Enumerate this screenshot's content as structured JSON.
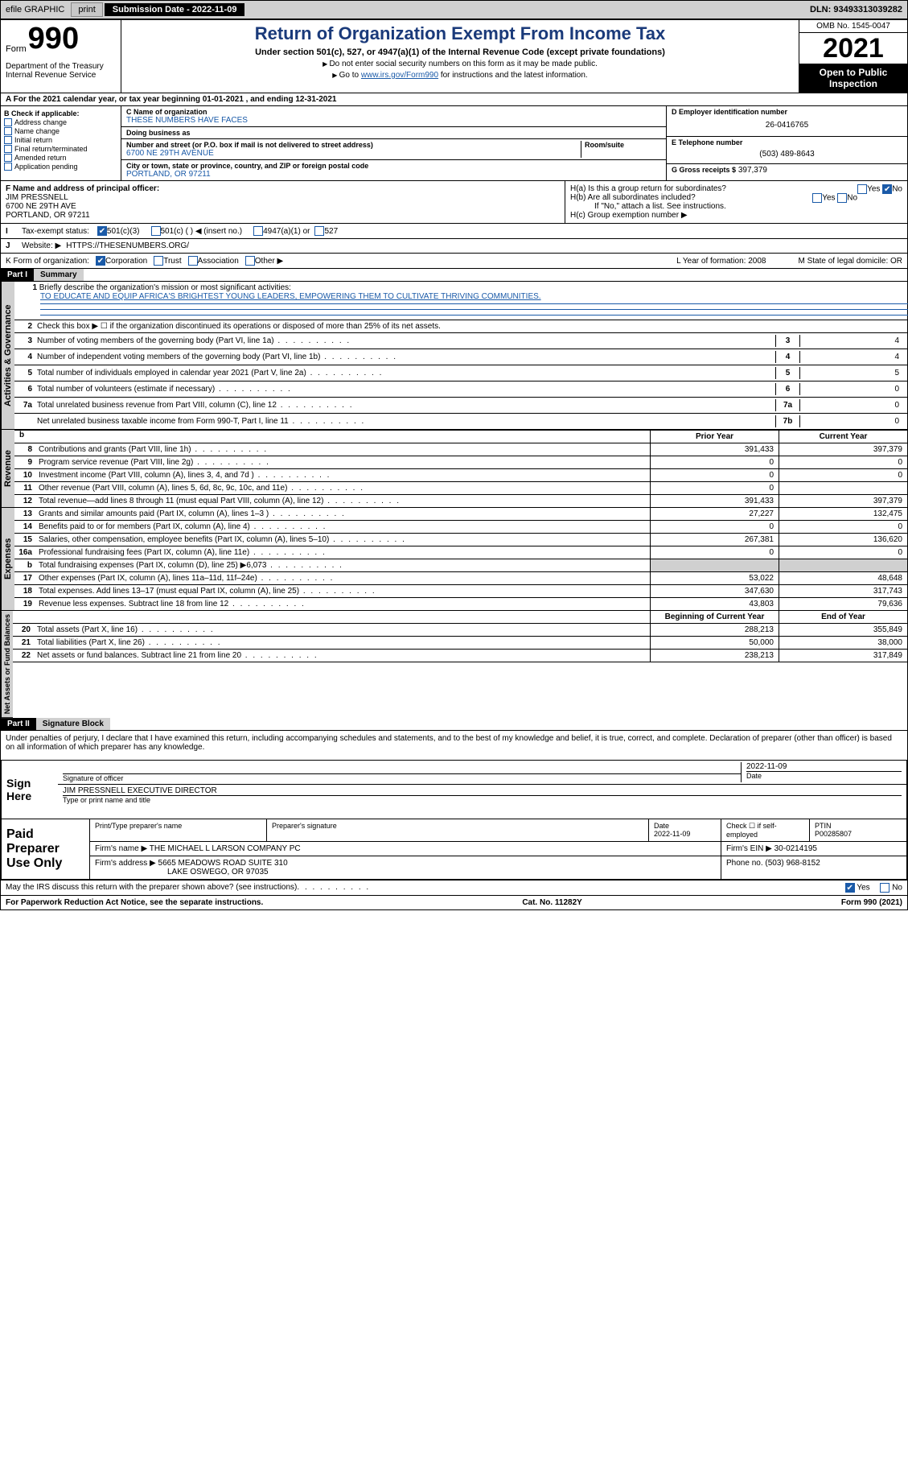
{
  "topbar": {
    "efile": "efile GRAPHIC",
    "print": "print",
    "submission": "Submission Date - 2022-11-09",
    "dln": "DLN: 93493313039282"
  },
  "header": {
    "form_word": "Form",
    "form_num": "990",
    "title": "Return of Organization Exempt From Income Tax",
    "sub": "Under section 501(c), 527, or 4947(a)(1) of the Internal Revenue Code (except private foundations)",
    "note1": "Do not enter social security numbers on this form as it may be made public.",
    "note2_pre": "Go to ",
    "note2_link": "www.irs.gov/Form990",
    "note2_post": " for instructions and the latest information.",
    "dept": "Department of the Treasury\nInternal Revenue Service",
    "omb": "OMB No. 1545-0047",
    "year": "2021",
    "inspection": "Open to Public Inspection"
  },
  "period": "For the 2021 calendar year, or tax year beginning 01-01-2021   , and ending 12-31-2021",
  "sectionB": {
    "hdr": "B Check if applicable:",
    "items": [
      "Address change",
      "Name change",
      "Initial return",
      "Final return/terminated",
      "Amended return",
      "Application pending"
    ]
  },
  "sectionC": {
    "name_lbl": "C Name of organization",
    "name": "THESE NUMBERS HAVE FACES",
    "dba_lbl": "Doing business as",
    "addr_lbl": "Number and street (or P.O. box if mail is not delivered to street address)",
    "room_lbl": "Room/suite",
    "addr": "6700 NE 29TH AVENUE",
    "city_lbl": "City or town, state or province, country, and ZIP or foreign postal code",
    "city": "PORTLAND, OR  97211"
  },
  "sectionD": {
    "lbl": "D Employer identification number",
    "val": "26-0416765"
  },
  "sectionE": {
    "lbl": "E Telephone number",
    "val": "(503) 489-8643"
  },
  "sectionG": {
    "lbl": "G Gross receipts $",
    "val": "397,379"
  },
  "sectionF": {
    "lbl": "F Name and address of principal officer:",
    "name": "JIM PRESSNELL",
    "addr1": "6700 NE 29TH AVE",
    "addr2": "PORTLAND, OR  97211"
  },
  "sectionH": {
    "a": "H(a)  Is this a group return for subordinates?",
    "b": "H(b)  Are all subordinates included?",
    "b_note": "If \"No,\" attach a list. See instructions.",
    "c": "H(c)  Group exemption number ▶",
    "yes": "Yes",
    "no": "No"
  },
  "rowI": {
    "lbl": "Tax-exempt status:",
    "o1": "501(c)(3)",
    "o2": "501(c) (  ) ◀ (insert no.)",
    "o3": "4947(a)(1) or",
    "o4": "527"
  },
  "rowJ": {
    "lbl": "Website: ▶",
    "val": "HTTPS://THESENUMBERS.ORG/"
  },
  "rowK": {
    "lbl": "K Form of organization:",
    "o1": "Corporation",
    "o2": "Trust",
    "o3": "Association",
    "o4": "Other ▶",
    "L": "L Year of formation: 2008",
    "M": "M State of legal domicile: OR"
  },
  "partI": {
    "hdr": "Part I",
    "title": "Summary",
    "tabs": {
      "gov": "Activities & Governance",
      "rev": "Revenue",
      "exp": "Expenses",
      "net": "Net Assets or Fund Balances"
    },
    "l1": "Briefly describe the organization's mission or most significant activities:",
    "mission": "TO EDUCATE AND EQUIP AFRICA'S BRIGHTEST YOUNG LEADERS, EMPOWERING THEM TO CULTIVATE THRIVING COMMUNITIES.",
    "l2": "Check this box ▶ ☐  if the organization discontinued its operations or disposed of more than 25% of its net assets.",
    "lines_gov": [
      {
        "n": "3",
        "t": "Number of voting members of the governing body (Part VI, line 1a)",
        "b": "3",
        "v": "4"
      },
      {
        "n": "4",
        "t": "Number of independent voting members of the governing body (Part VI, line 1b)",
        "b": "4",
        "v": "4"
      },
      {
        "n": "5",
        "t": "Total number of individuals employed in calendar year 2021 (Part V, line 2a)",
        "b": "5",
        "v": "5"
      },
      {
        "n": "6",
        "t": "Total number of volunteers (estimate if necessary)",
        "b": "6",
        "v": "0"
      },
      {
        "n": "7a",
        "t": "Total unrelated business revenue from Part VIII, column (C), line 12",
        "b": "7a",
        "v": "0"
      },
      {
        "n": "",
        "t": "Net unrelated business taxable income from Form 990-T, Part I, line 11",
        "b": "7b",
        "v": "0"
      }
    ],
    "col_prior": "Prior Year",
    "col_curr": "Current Year",
    "col_beg": "Beginning of Current Year",
    "col_end": "End of Year",
    "lines_rev": [
      {
        "n": "8",
        "t": "Contributions and grants (Part VIII, line 1h)",
        "p": "391,433",
        "c": "397,379"
      },
      {
        "n": "9",
        "t": "Program service revenue (Part VIII, line 2g)",
        "p": "0",
        "c": "0"
      },
      {
        "n": "10",
        "t": "Investment income (Part VIII, column (A), lines 3, 4, and 7d )",
        "p": "0",
        "c": "0"
      },
      {
        "n": "11",
        "t": "Other revenue (Part VIII, column (A), lines 5, 6d, 8c, 9c, 10c, and 11e)",
        "p": "0",
        "c": ""
      },
      {
        "n": "12",
        "t": "Total revenue—add lines 8 through 11 (must equal Part VIII, column (A), line 12)",
        "p": "391,433",
        "c": "397,379"
      }
    ],
    "lines_exp": [
      {
        "n": "13",
        "t": "Grants and similar amounts paid (Part IX, column (A), lines 1–3 )",
        "p": "27,227",
        "c": "132,475"
      },
      {
        "n": "14",
        "t": "Benefits paid to or for members (Part IX, column (A), line 4)",
        "p": "0",
        "c": "0"
      },
      {
        "n": "15",
        "t": "Salaries, other compensation, employee benefits (Part IX, column (A), lines 5–10)",
        "p": "267,381",
        "c": "136,620"
      },
      {
        "n": "16a",
        "t": "Professional fundraising fees (Part IX, column (A), line 11e)",
        "p": "0",
        "c": "0"
      },
      {
        "n": "b",
        "t": "Total fundraising expenses (Part IX, column (D), line 25) ▶6,073",
        "p": "",
        "c": "",
        "shaded": true
      },
      {
        "n": "17",
        "t": "Other expenses (Part IX, column (A), lines 11a–11d, 11f–24e)",
        "p": "53,022",
        "c": "48,648"
      },
      {
        "n": "18",
        "t": "Total expenses. Add lines 13–17 (must equal Part IX, column (A), line 25)",
        "p": "347,630",
        "c": "317,743"
      },
      {
        "n": "19",
        "t": "Revenue less expenses. Subtract line 18 from line 12",
        "p": "43,803",
        "c": "79,636"
      }
    ],
    "lines_net": [
      {
        "n": "20",
        "t": "Total assets (Part X, line 16)",
        "p": "288,213",
        "c": "355,849"
      },
      {
        "n": "21",
        "t": "Total liabilities (Part X, line 26)",
        "p": "50,000",
        "c": "38,000"
      },
      {
        "n": "22",
        "t": "Net assets or fund balances. Subtract line 21 from line 20",
        "p": "238,213",
        "c": "317,849"
      }
    ]
  },
  "partII": {
    "hdr": "Part II",
    "title": "Signature Block",
    "decl": "Under penalties of perjury, I declare that I have examined this return, including accompanying schedules and statements, and to the best of my knowledge and belief, it is true, correct, and complete. Declaration of preparer (other than officer) is based on all information of which preparer has any knowledge.",
    "sign_here": "Sign Here",
    "sig_officer": "Signature of officer",
    "sig_date": "2022-11-09",
    "date_lbl": "Date",
    "officer_name": "JIM PRESSNELL EXECUTIVE DIRECTOR",
    "officer_lbl": "Type or print name and title",
    "paid": "Paid Preparer Use Only",
    "prep_name_lbl": "Print/Type preparer's name",
    "prep_sig_lbl": "Preparer's signature",
    "prep_date_lbl": "Date",
    "prep_date": "2022-11-09",
    "check_lbl": "Check ☐ if self-employed",
    "ptin_lbl": "PTIN",
    "ptin": "P00285807",
    "firm_name_lbl": "Firm's name    ▶",
    "firm_name": "THE MICHAEL L LARSON COMPANY PC",
    "firm_ein_lbl": "Firm's EIN ▶",
    "firm_ein": "30-0214195",
    "firm_addr_lbl": "Firm's address ▶",
    "firm_addr1": "5665 MEADOWS ROAD SUITE 310",
    "firm_addr2": "LAKE OSWEGO, OR  97035",
    "phone_lbl": "Phone no.",
    "phone": "(503) 968-8152",
    "discuss": "May the IRS discuss this return with the preparer shown above? (see instructions)",
    "yes": "Yes",
    "no": "No"
  },
  "footer": {
    "pra": "For Paperwork Reduction Act Notice, see the separate instructions.",
    "cat": "Cat. No. 11282Y",
    "form": "Form 990 (2021)"
  }
}
